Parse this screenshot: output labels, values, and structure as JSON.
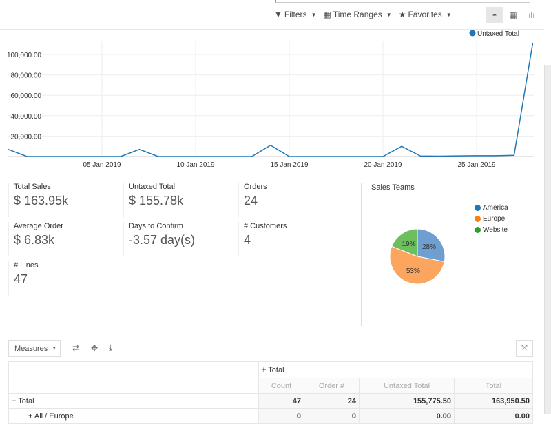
{
  "searchbar": {
    "filters": "Filters",
    "time_ranges": "Time Ranges",
    "favorites": "Favorites"
  },
  "views": [
    {
      "icon": "dashboard-icon",
      "active": true
    },
    {
      "icon": "pivot-icon",
      "active": false
    },
    {
      "icon": "graph-icon",
      "active": false
    }
  ],
  "chart_data": {
    "type": "line",
    "series": [
      {
        "name": "Untaxed Total",
        "color": "#1f77b4",
        "values": [
          7000,
          0,
          0,
          0,
          0,
          0,
          0,
          7000,
          0,
          0,
          0,
          0,
          0,
          0,
          11000,
          0,
          0,
          0,
          0,
          0,
          0,
          10000,
          500,
          300,
          600,
          800,
          800,
          1200,
          111500
        ]
      }
    ],
    "x": [
      "31 Dec 2018",
      "01 Jan 2019",
      "02 Jan 2019",
      "03 Jan 2019",
      "04 Jan 2019",
      "05 Jan 2019",
      "06 Jan 2019",
      "07 Jan 2019",
      "08 Jan 2019",
      "09 Jan 2019",
      "10 Jan 2019",
      "11 Jan 2019",
      "12 Jan 2019",
      "13 Jan 2019",
      "14 Jan 2019",
      "15 Jan 2019",
      "16 Jan 2019",
      "17 Jan 2019",
      "18 Jan 2019",
      "19 Jan 2019",
      "20 Jan 2019",
      "21 Jan 2019",
      "22 Jan 2019",
      "23 Jan 2019",
      "24 Jan 2019",
      "25 Jan 2019",
      "26 Jan 2019",
      "27 Jan 2019",
      "28 Jan 2019"
    ],
    "xticks": [
      "05 Jan 2019",
      "10 Jan 2019",
      "15 Jan 2019",
      "20 Jan 2019",
      "25 Jan 2019"
    ],
    "yticks": [
      "20,000.00",
      "40,000.00",
      "60,000.00",
      "80,000.00",
      "100,000.00"
    ],
    "ylim": [
      0,
      115000
    ],
    "grid": true,
    "legend": "top-right"
  },
  "kpis": [
    {
      "label": "Total Sales",
      "value": "$ 163.95k"
    },
    {
      "label": "Untaxed Total",
      "value": "$ 155.78k"
    },
    {
      "label": "Orders",
      "value": "24"
    },
    {
      "label": "Average Order",
      "value": "$ 6.83k"
    },
    {
      "label": "Days to Confirm",
      "value": "-3.57 day(s)"
    },
    {
      "label": "# Customers",
      "value": "4"
    },
    {
      "label": "# Lines",
      "value": "47"
    }
  ],
  "pie": {
    "title": "Sales Teams",
    "slices": [
      {
        "label": "America",
        "value": 28,
        "text": "28%",
        "color": "#6f9fd0"
      },
      {
        "label": "Europe",
        "value": 53,
        "text": "53%",
        "color": "#fba55f"
      },
      {
        "label": "Website",
        "value": 19,
        "text": "19%",
        "color": "#6cbe5f"
      }
    ],
    "legend_colors": [
      "#1f77b4",
      "#ff7f0e",
      "#2ca02c"
    ]
  },
  "pivot": {
    "measures": "Measures",
    "col_header": "Total",
    "columns": [
      "Count",
      "Order #",
      "Untaxed Total",
      "Total"
    ],
    "rows": [
      {
        "label": "Total",
        "values": [
          "47",
          "24",
          "155,775.50",
          "163,950.50"
        ]
      },
      {
        "label": "All / Europe",
        "values": [
          "0",
          "0",
          "0.00",
          "0.00"
        ]
      }
    ]
  }
}
